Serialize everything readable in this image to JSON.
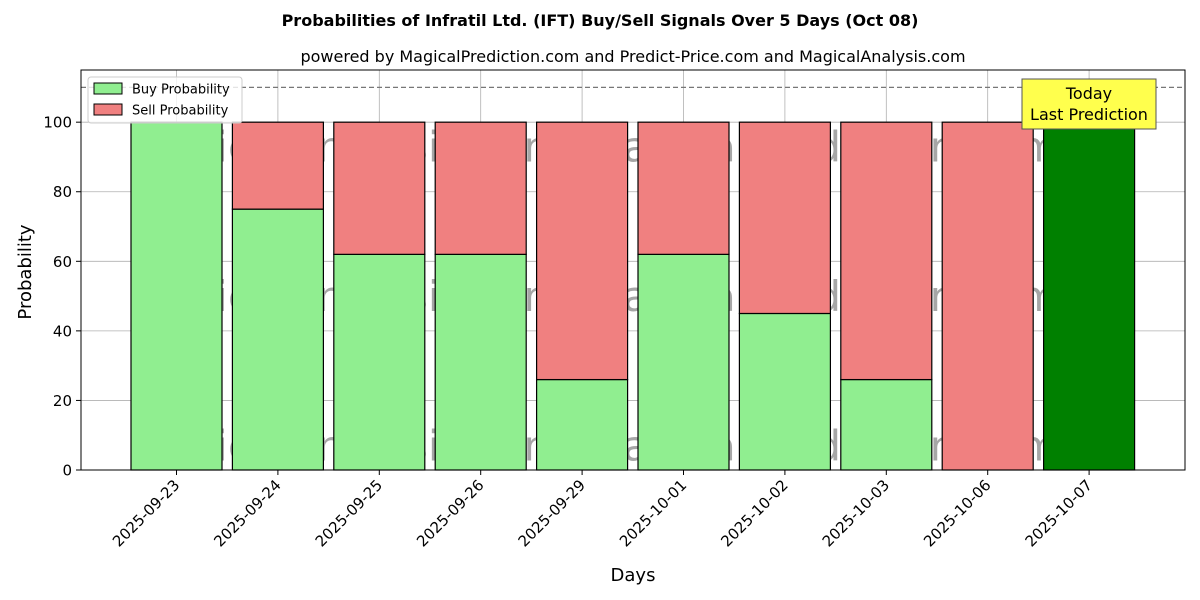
{
  "chart_data": {
    "type": "bar",
    "stacked": true,
    "title": "Probabilities of Infratil Ltd. (IFT) Buy/Sell Signals Over 5 Days (Oct 08)",
    "subtitle": "powered by MagicalPrediction.com and Predict-Price.com and MagicalAnalysis.com",
    "xlabel": "Days",
    "ylabel": "Probability",
    "ylim": [
      0,
      115
    ],
    "yticks": [
      0,
      20,
      40,
      60,
      80,
      100
    ],
    "grid": true,
    "reference_line": 110,
    "legend_position": "top-left",
    "categories": [
      "2025-09-23",
      "2025-09-24",
      "2025-09-25",
      "2025-09-26",
      "2025-09-29",
      "2025-10-01",
      "2025-10-02",
      "2025-10-03",
      "2025-10-06",
      "2025-10-07"
    ],
    "series": [
      {
        "name": "Buy Probability",
        "color": "#90ee90",
        "values": [
          100,
          75,
          62,
          62,
          26,
          62,
          45,
          26,
          0,
          100
        ]
      },
      {
        "name": "Sell Probability",
        "color": "#f08080",
        "values": [
          0,
          25,
          38,
          38,
          74,
          38,
          55,
          74,
          100,
          0
        ]
      }
    ],
    "highlight": {
      "index": 9,
      "color": "#008000"
    },
    "annotation": {
      "line1": "Today",
      "line2": "Last Prediction",
      "bg": "#ffff4d"
    },
    "watermarks": [
      "MagicalAnalysis.com",
      "MagicalPrediction.com"
    ]
  }
}
